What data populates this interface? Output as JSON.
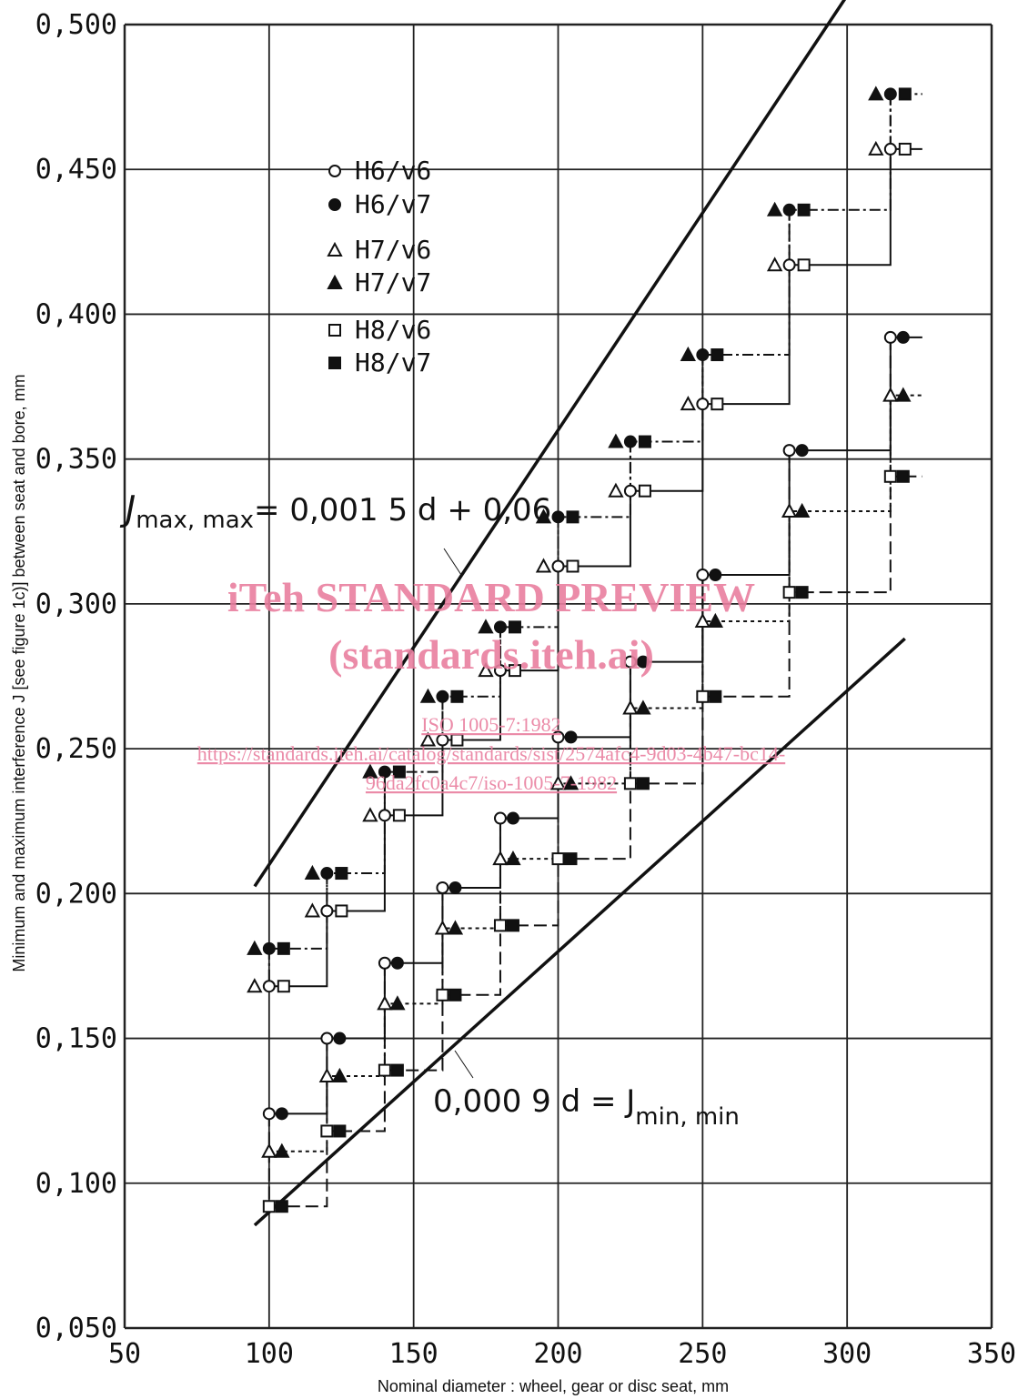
{
  "chart_data": {
    "type": "scatter",
    "xlabel": "Nominal diameter : wheel, gear or disc seat, mm",
    "ylabel": "Minimum and maximum interference J [see figure 1c)] between seat and bore, mm",
    "xlim": [
      50,
      350
    ],
    "ylim": [
      0.05,
      0.5
    ],
    "x_ticks": [
      "50",
      "100",
      "150",
      "200",
      "250",
      "300",
      "350"
    ],
    "y_ticks": [
      "0,050",
      "0,100",
      "0,150",
      "0,200",
      "0,250",
      "0,300",
      "0,350",
      "0,400",
      "0,450",
      "0,500"
    ],
    "grid": true,
    "legend_position": "top-left",
    "diameters": [
      100,
      120,
      140,
      160,
      180,
      200,
      225,
      250,
      280,
      315
    ],
    "series": [
      {
        "name": "H6/v6",
        "marker": "circle-open",
        "max": [
          0.168,
          0.194,
          0.227,
          0.253,
          0.277,
          0.313,
          0.339,
          0.369,
          0.417,
          0.457
        ],
        "min": [
          0.124,
          0.15,
          0.176,
          0.202,
          0.226,
          0.254,
          0.28,
          0.31,
          0.353,
          0.392
        ]
      },
      {
        "name": "H6/v7",
        "marker": "circle-filled",
        "max": [
          0.181,
          0.207,
          0.242,
          0.268,
          0.292,
          0.33,
          0.356,
          0.386,
          0.436,
          0.476
        ],
        "min": [
          0.124,
          0.15,
          0.176,
          0.202,
          0.226,
          0.254,
          0.28,
          0.31,
          0.353,
          0.392
        ]
      },
      {
        "name": "H7/v6",
        "marker": "triangle-open",
        "max": [
          0.168,
          0.194,
          0.227,
          0.253,
          0.277,
          0.313,
          0.339,
          0.369,
          0.417,
          0.457
        ],
        "min": [
          0.111,
          0.137,
          0.162,
          0.188,
          0.212,
          0.238,
          0.264,
          0.294,
          0.332,
          0.372
        ]
      },
      {
        "name": "H7/v7",
        "marker": "triangle-filled",
        "max": [
          0.181,
          0.207,
          0.242,
          0.268,
          0.292,
          0.33,
          0.356,
          0.386,
          0.436,
          0.476
        ],
        "min": [
          0.111,
          0.137,
          0.162,
          0.188,
          0.212,
          0.238,
          0.264,
          0.294,
          0.332,
          0.372
        ]
      },
      {
        "name": "H8/v6",
        "marker": "square-open",
        "max": [
          0.168,
          0.194,
          0.227,
          0.253,
          0.277,
          0.313,
          0.339,
          0.369,
          0.417,
          0.457
        ],
        "min": [
          0.092,
          0.118,
          0.139,
          0.165,
          0.189,
          0.212,
          0.238,
          0.268,
          0.304,
          0.344
        ]
      },
      {
        "name": "H8/v7",
        "marker": "square-filled",
        "max": [
          0.181,
          0.207,
          0.242,
          0.268,
          0.292,
          0.33,
          0.356,
          0.386,
          0.436,
          0.476
        ],
        "min": [
          0.092,
          0.118,
          0.139,
          0.165,
          0.189,
          0.212,
          0.238,
          0.268,
          0.304,
          0.344
        ]
      }
    ],
    "boundary_lines": [
      {
        "formula": "0.0015*d+0.06",
        "x": [
          95,
          300
        ],
        "label_main": "J",
        "label_sub": "max, max",
        "label_rest": "= 0,001 5 d + 0,06"
      },
      {
        "formula": "0.0009*d",
        "x": [
          95,
          320
        ],
        "label_main": "0,000 9 d = J",
        "label_sub": "min, min"
      }
    ]
  },
  "watermark": {
    "title": "iTeh STANDARD PREVIEW",
    "subtitle": "(standards.iteh.ai)",
    "doc": "ISO 1005-7:1982",
    "url1": "https://standards.iteh.ai/catalog/standards/sist/2574afc4-9d03-4b47-bc14-",
    "url2": "96da2fc0a4c7/iso-1005-7-1982"
  },
  "colors": {
    "ink": "#111111",
    "grid": "#222222",
    "watermark": "#e97f9f"
  }
}
